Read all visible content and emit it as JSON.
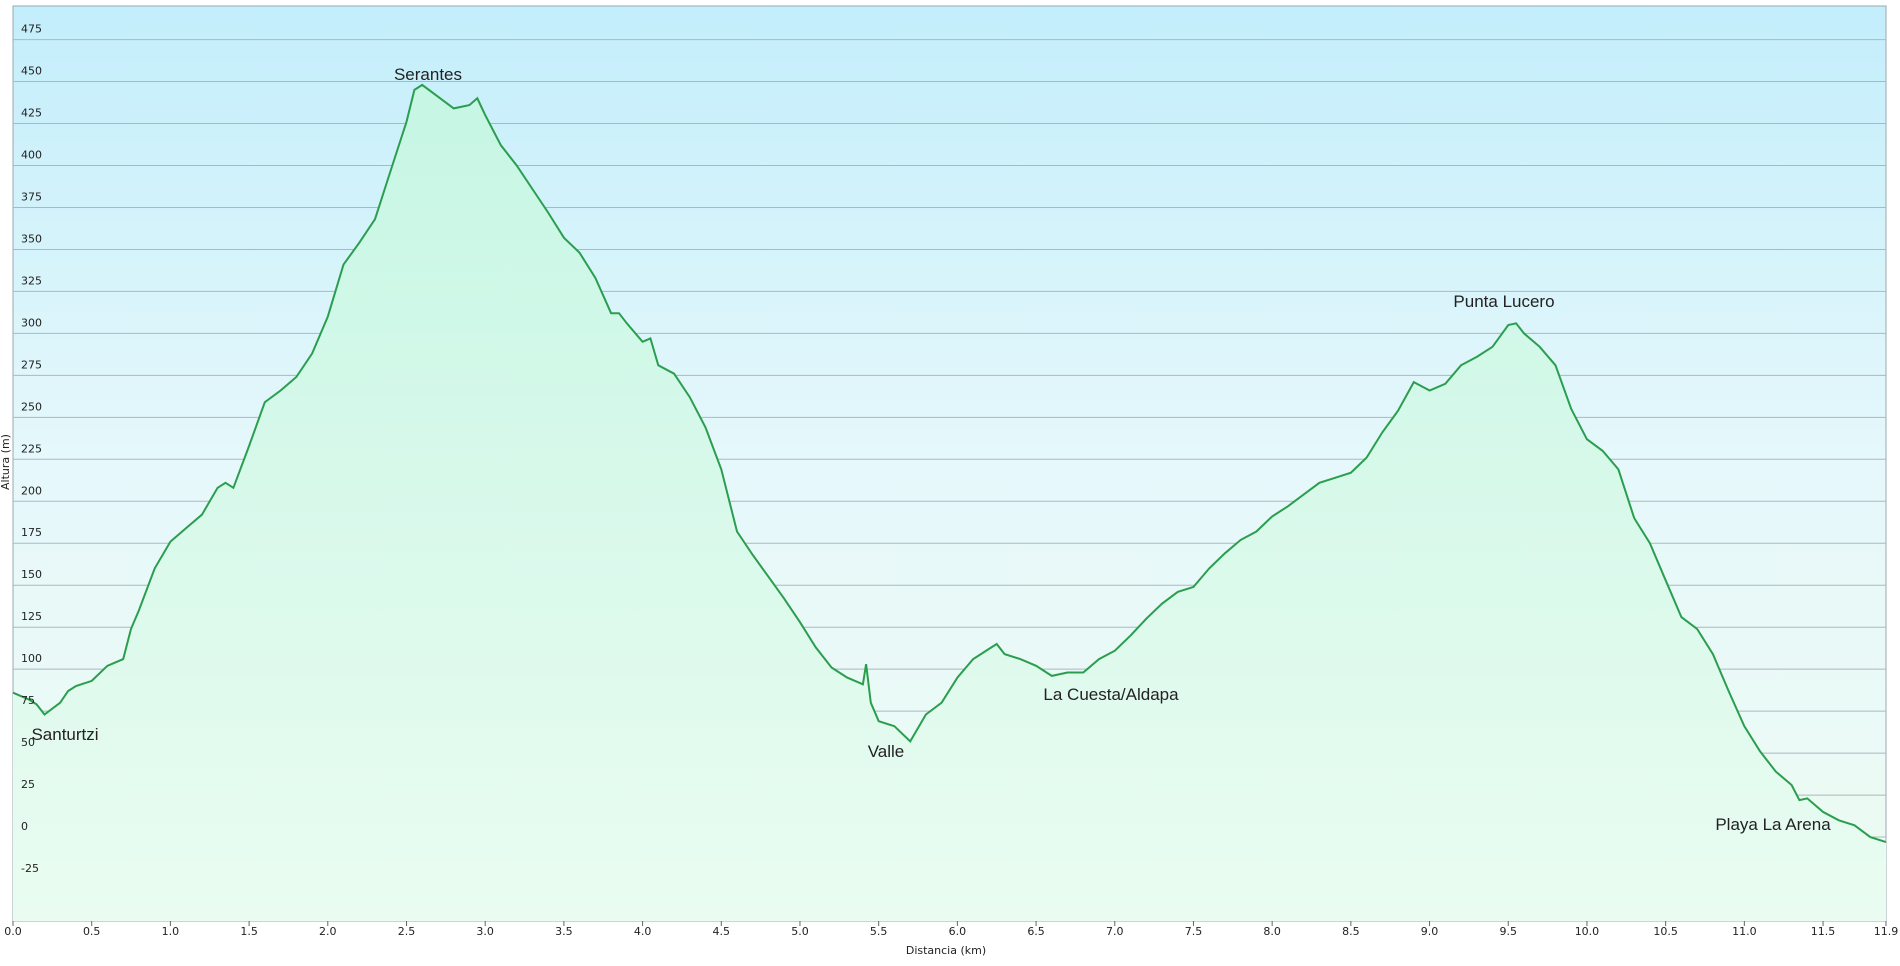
{
  "chart_data": {
    "type": "area",
    "x_label": "Distancia  (km)",
    "y_label": "Altura (m)",
    "color": "#2a9e4e",
    "grid": true,
    "xlim": [
      0,
      11.9
    ],
    "ylim": [
      -50,
      495
    ],
    "xticks": [
      {
        "value": 0,
        "label": "0.0"
      },
      0.5,
      {
        "value": 1,
        "label": "1.0"
      },
      1.5,
      {
        "value": 2,
        "label": "2.0"
      },
      2.5,
      {
        "value": 3,
        "label": "3.0"
      },
      3.5,
      {
        "value": 4,
        "label": "4.0"
      },
      4.5,
      {
        "value": 5,
        "label": "5.0"
      },
      5.5,
      {
        "value": 6,
        "label": "6.0"
      },
      6.5,
      {
        "value": 7,
        "label": "7.0"
      },
      7.5,
      {
        "value": 8,
        "label": "8.0"
      },
      8.5,
      {
        "value": 9,
        "label": "9.0"
      },
      9.5,
      {
        "value": 10,
        "label": "10.0"
      },
      10.5,
      {
        "value": 11,
        "label": "11.0"
      },
      11.5,
      11.9
    ],
    "yticks": [
      -25,
      0,
      25,
      50,
      75,
      100,
      125,
      150,
      175,
      200,
      225,
      250,
      275,
      300,
      325,
      350,
      375,
      400,
      425,
      450,
      475
    ],
    "annotations": [
      "Serantes",
      "Santurtzi",
      "Valle",
      "La Cuesta/Aldapa",
      "Punta Lucero",
      "Playa La Arena"
    ],
    "x": [
      0,
      0.1,
      0.15,
      0.2,
      0.3,
      0.35,
      0.4,
      0.5,
      0.6,
      0.7,
      0.75,
      0.8,
      0.9,
      1.0,
      1.1,
      1.2,
      1.3,
      1.35,
      1.4,
      1.5,
      1.6,
      1.7,
      1.8,
      1.9,
      2.0,
      2.1,
      2.2,
      2.3,
      2.4,
      2.5,
      2.55,
      2.6,
      2.7,
      2.8,
      2.9,
      2.95,
      3.0,
      3.1,
      3.2,
      3.3,
      3.4,
      3.5,
      3.6,
      3.7,
      3.8,
      3.85,
      3.9,
      4.0,
      4.05,
      4.1,
      4.2,
      4.3,
      4.4,
      4.5,
      4.6,
      4.7,
      4.8,
      4.9,
      5.0,
      5.1,
      5.2,
      5.3,
      5.4,
      5.42,
      5.45,
      5.5,
      5.6,
      5.7,
      5.8,
      5.9,
      6.0,
      6.1,
      6.2,
      6.25,
      6.3,
      6.4,
      6.5,
      6.6,
      6.7,
      6.8,
      6.9,
      7.0,
      7.1,
      7.2,
      7.3,
      7.4,
      7.5,
      7.6,
      7.7,
      7.8,
      7.9,
      8.0,
      8.1,
      8.2,
      8.3,
      8.4,
      8.5,
      8.6,
      8.7,
      8.8,
      8.9,
      9.0,
      9.1,
      9.2,
      9.3,
      9.4,
      9.5,
      9.55,
      9.6,
      9.7,
      9.8,
      9.9,
      10.0,
      10.1,
      10.2,
      10.3,
      10.4,
      10.5,
      10.6,
      10.7,
      10.8,
      10.9,
      11.0,
      11.1,
      11.2,
      11.3,
      11.35,
      11.4,
      11.5,
      11.6,
      11.7,
      11.8,
      11.9
    ],
    "values": [
      86,
      82,
      79,
      73,
      80,
      87,
      90,
      93,
      102,
      106,
      124,
      135,
      160,
      176,
      184,
      192,
      208,
      211,
      208,
      233,
      259,
      266,
      274,
      288,
      310,
      341,
      354,
      368,
      397,
      426,
      445,
      448,
      441,
      434,
      436,
      440,
      430,
      412,
      400,
      386,
      372,
      357,
      348,
      333,
      312,
      312,
      306,
      295,
      297,
      281,
      276,
      262,
      244,
      219,
      182,
      168,
      155,
      142,
      128,
      113,
      101,
      95,
      91,
      103,
      80,
      69,
      66,
      57,
      73,
      80,
      95,
      106,
      112,
      115,
      109,
      106,
      102,
      96,
      98,
      98,
      106,
      111,
      120,
      130,
      139,
      146,
      149,
      160,
      169,
      177,
      182,
      191,
      197,
      204,
      211,
      214,
      217,
      226,
      241,
      254,
      271,
      266,
      270,
      281,
      286,
      292,
      305,
      306,
      300,
      292,
      281,
      255,
      237,
      230,
      219,
      190,
      175,
      153,
      131,
      124,
      109,
      87,
      66,
      51,
      39,
      31,
      22,
      23,
      15,
      10,
      7,
      0,
      -3
    ]
  }
}
